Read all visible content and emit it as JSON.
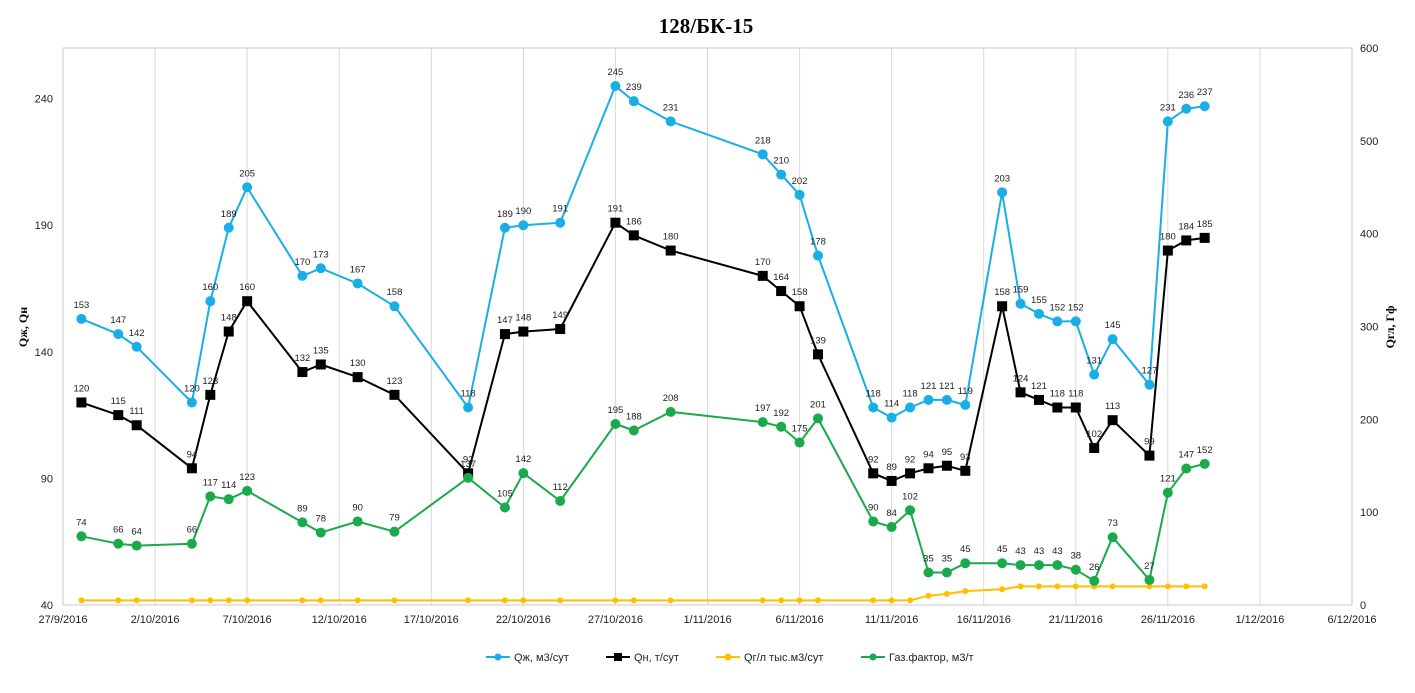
{
  "chart_data": {
    "type": "line",
    "title": "128/БК-15",
    "ylabel": "Qж, Qн",
    "y2label": "Qгл, Гф",
    "ylim": [
      40,
      260
    ],
    "y2lim": [
      0,
      600
    ],
    "yticks": [
      40,
      90,
      140,
      190,
      240
    ],
    "y2ticks": [
      0,
      100,
      200,
      300,
      400,
      500,
      600
    ],
    "xlim": [
      "2016-09-27",
      "2016-12-06"
    ],
    "xticks": [
      "27/9/2016",
      "2/10/2016",
      "7/10/2016",
      "12/10/2016",
      "17/10/2016",
      "22/10/2016",
      "27/10/2016",
      "1/11/2016",
      "6/11/2016",
      "11/11/2016",
      "16/11/2016",
      "21/11/2016",
      "26/11/2016",
      "1/12/2016",
      "6/12/2016"
    ],
    "grid": "vertical",
    "legend_position": "bottom",
    "series": [
      {
        "name": "Qж, м3/сут",
        "axis": "left",
        "color": "#1aaee6",
        "marker": "circle",
        "label_position": "above",
        "points": [
          [
            "2016-09-28",
            153
          ],
          [
            "2016-09-30",
            147
          ],
          [
            "2016-10-01",
            142
          ],
          [
            "2016-10-04",
            120
          ],
          [
            "2016-10-05",
            160
          ],
          [
            "2016-10-06",
            189
          ],
          [
            "2016-10-07",
            205
          ],
          [
            "2016-10-10",
            170
          ],
          [
            "2016-10-11",
            173
          ],
          [
            "2016-10-13",
            167
          ],
          [
            "2016-10-15",
            158
          ],
          [
            "2016-10-19",
            118
          ],
          [
            "2016-10-21",
            189
          ],
          [
            "2016-10-22",
            190
          ],
          [
            "2016-10-24",
            191
          ],
          [
            "2016-10-27",
            245
          ],
          [
            "2016-10-28",
            239
          ],
          [
            "2016-10-30",
            231
          ],
          [
            "2016-11-04",
            218
          ],
          [
            "2016-11-05",
            210
          ],
          [
            "2016-11-06",
            202
          ],
          [
            "2016-11-07",
            178
          ],
          [
            "2016-11-10",
            118
          ],
          [
            "2016-11-11",
            114
          ],
          [
            "2016-11-12",
            118
          ],
          [
            "2016-11-13",
            121
          ],
          [
            "2016-11-14",
            121
          ],
          [
            "2016-11-15",
            119
          ],
          [
            "2016-11-17",
            203
          ],
          [
            "2016-11-18",
            159
          ],
          [
            "2016-11-19",
            155
          ],
          [
            "2016-11-20",
            152
          ],
          [
            "2016-11-21",
            152
          ],
          [
            "2016-11-22",
            131
          ],
          [
            "2016-11-23",
            145
          ],
          [
            "2016-11-25",
            127
          ],
          [
            "2016-11-26",
            231
          ],
          [
            "2016-11-27",
            236
          ],
          [
            "2016-11-28",
            237
          ]
        ]
      },
      {
        "name": "Qн, т/сут",
        "axis": "left",
        "color": "#000000",
        "marker": "square",
        "label_position": "above",
        "points": [
          [
            "2016-09-28",
            120
          ],
          [
            "2016-09-30",
            115
          ],
          [
            "2016-10-01",
            111
          ],
          [
            "2016-10-04",
            94
          ],
          [
            "2016-10-05",
            123
          ],
          [
            "2016-10-06",
            148
          ],
          [
            "2016-10-07",
            160
          ],
          [
            "2016-10-10",
            132
          ],
          [
            "2016-10-11",
            135
          ],
          [
            "2016-10-13",
            130
          ],
          [
            "2016-10-15",
            123
          ],
          [
            "2016-10-19",
            92
          ],
          [
            "2016-10-21",
            147
          ],
          [
            "2016-10-22",
            148
          ],
          [
            "2016-10-24",
            149
          ],
          [
            "2016-10-27",
            191
          ],
          [
            "2016-10-28",
            186
          ],
          [
            "2016-10-30",
            180
          ],
          [
            "2016-11-04",
            170
          ],
          [
            "2016-11-05",
            164
          ],
          [
            "2016-11-06",
            158
          ],
          [
            "2016-11-07",
            139
          ],
          [
            "2016-11-10",
            92
          ],
          [
            "2016-11-11",
            89
          ],
          [
            "2016-11-12",
            92
          ],
          [
            "2016-11-13",
            94
          ],
          [
            "2016-11-14",
            95
          ],
          [
            "2016-11-15",
            93
          ],
          [
            "2016-11-17",
            158
          ],
          [
            "2016-11-18",
            124
          ],
          [
            "2016-11-19",
            121
          ],
          [
            "2016-11-20",
            118
          ],
          [
            "2016-11-21",
            118
          ],
          [
            "2016-11-22",
            102
          ],
          [
            "2016-11-23",
            113
          ],
          [
            "2016-11-25",
            99
          ],
          [
            "2016-11-26",
            180
          ],
          [
            "2016-11-27",
            184
          ],
          [
            "2016-11-28",
            185
          ]
        ]
      },
      {
        "name": "Qг/л тыс.м3/сут",
        "axis": "right",
        "color": "#ffc000",
        "marker": "circle-small",
        "label_position": "none",
        "points": [
          [
            "2016-09-28",
            5
          ],
          [
            "2016-09-30",
            5
          ],
          [
            "2016-10-01",
            5
          ],
          [
            "2016-10-04",
            5
          ],
          [
            "2016-10-05",
            5
          ],
          [
            "2016-10-06",
            5
          ],
          [
            "2016-10-07",
            5
          ],
          [
            "2016-10-10",
            5
          ],
          [
            "2016-10-11",
            5
          ],
          [
            "2016-10-13",
            5
          ],
          [
            "2016-10-15",
            5
          ],
          [
            "2016-10-19",
            5
          ],
          [
            "2016-10-21",
            5
          ],
          [
            "2016-10-22",
            5
          ],
          [
            "2016-10-24",
            5
          ],
          [
            "2016-10-27",
            5
          ],
          [
            "2016-10-28",
            5
          ],
          [
            "2016-10-30",
            5
          ],
          [
            "2016-11-04",
            5
          ],
          [
            "2016-11-05",
            5
          ],
          [
            "2016-11-06",
            5
          ],
          [
            "2016-11-07",
            5
          ],
          [
            "2016-11-10",
            5
          ],
          [
            "2016-11-11",
            5
          ],
          [
            "2016-11-12",
            5
          ],
          [
            "2016-11-13",
            10
          ],
          [
            "2016-11-14",
            12
          ],
          [
            "2016-11-15",
            15
          ],
          [
            "2016-11-17",
            17
          ],
          [
            "2016-11-18",
            20
          ],
          [
            "2016-11-19",
            20
          ],
          [
            "2016-11-20",
            20
          ],
          [
            "2016-11-21",
            20
          ],
          [
            "2016-11-22",
            20
          ],
          [
            "2016-11-23",
            20
          ],
          [
            "2016-11-25",
            20
          ],
          [
            "2016-11-26",
            20
          ],
          [
            "2016-11-27",
            20
          ],
          [
            "2016-11-28",
            20
          ]
        ]
      },
      {
        "name": "Газ.фактор, м3/т",
        "axis": "right",
        "color": "#1aaa4b",
        "marker": "circle",
        "label_position": "above",
        "points": [
          [
            "2016-09-28",
            74
          ],
          [
            "2016-09-30",
            66
          ],
          [
            "2016-10-01",
            64
          ],
          [
            "2016-10-04",
            66
          ],
          [
            "2016-10-05",
            117
          ],
          [
            "2016-10-06",
            114
          ],
          [
            "2016-10-07",
            123
          ],
          [
            "2016-10-10",
            89
          ],
          [
            "2016-10-11",
            78
          ],
          [
            "2016-10-13",
            90
          ],
          [
            "2016-10-15",
            79
          ],
          [
            "2016-10-19",
            137
          ],
          [
            "2016-10-21",
            105
          ],
          [
            "2016-10-22",
            142
          ],
          [
            "2016-10-24",
            112
          ],
          [
            "2016-10-27",
            195
          ],
          [
            "2016-10-28",
            188
          ],
          [
            "2016-10-30",
            208
          ],
          [
            "2016-11-04",
            197
          ],
          [
            "2016-11-05",
            192
          ],
          [
            "2016-11-06",
            175
          ],
          [
            "2016-11-07",
            201
          ],
          [
            "2016-11-10",
            90
          ],
          [
            "2016-11-11",
            84
          ],
          [
            "2016-11-12",
            102
          ],
          [
            "2016-11-13",
            35
          ],
          [
            "2016-11-14",
            35
          ],
          [
            "2016-11-15",
            45
          ],
          [
            "2016-11-17",
            45
          ],
          [
            "2016-11-18",
            43
          ],
          [
            "2016-11-19",
            43
          ],
          [
            "2016-11-20",
            43
          ],
          [
            "2016-11-21",
            38
          ],
          [
            "2016-11-22",
            26
          ],
          [
            "2016-11-23",
            73
          ],
          [
            "2016-11-25",
            27
          ],
          [
            "2016-11-26",
            121
          ],
          [
            "2016-11-27",
            147
          ],
          [
            "2016-11-28",
            152
          ]
        ]
      }
    ]
  }
}
